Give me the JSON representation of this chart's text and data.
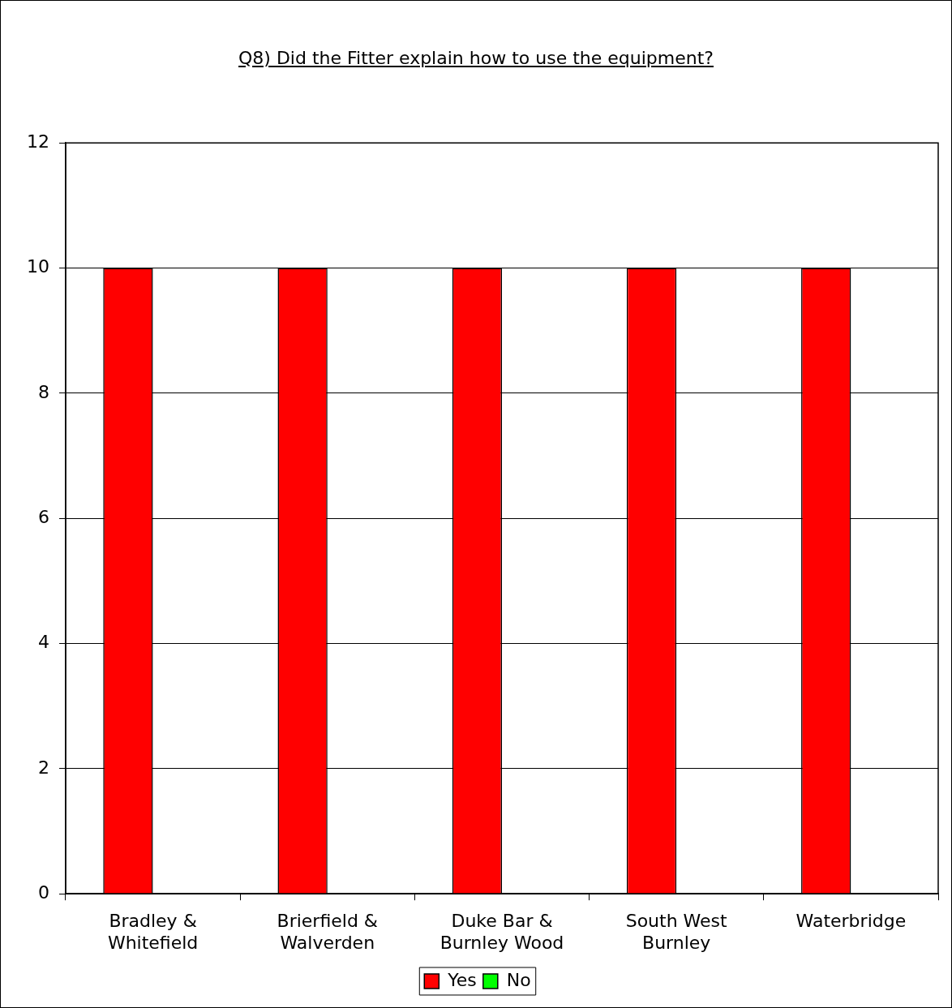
{
  "chart_data": {
    "type": "bar",
    "title": "Q8) Did the Fitter explain how to use the equipment?",
    "categories": [
      "Bradley & Whitefield",
      "Brierfield & Walverden",
      "Duke Bar & Burnley Wood",
      "South West Burnley",
      "Waterbridge"
    ],
    "series": [
      {
        "name": "Yes",
        "color": "#ff0000",
        "values": [
          10,
          10,
          10,
          10,
          10
        ]
      },
      {
        "name": "No",
        "color": "#00ff00",
        "values": [
          0,
          0,
          0,
          0,
          0
        ]
      }
    ],
    "ylim": [
      0,
      12
    ],
    "yticks": [
      0,
      2,
      4,
      6,
      8,
      10,
      12
    ],
    "grid": "y",
    "legend": "bottom"
  }
}
